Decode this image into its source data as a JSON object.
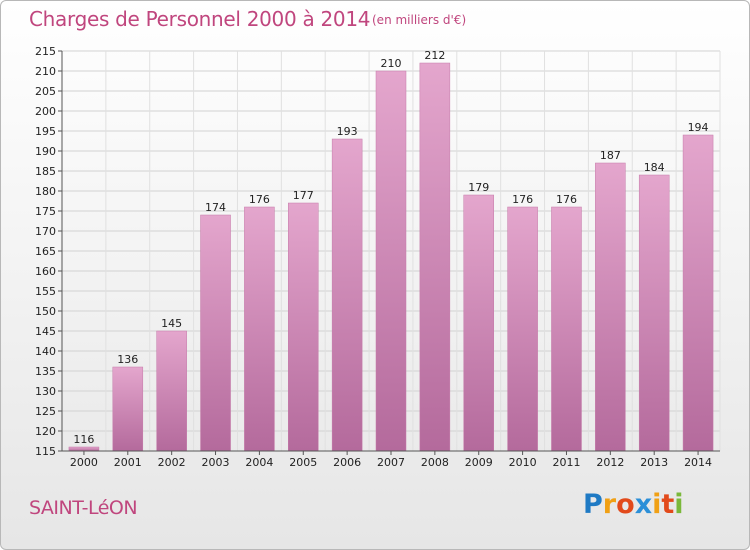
{
  "header": {
    "title": "Charges de Personnel 2000 à 2014",
    "subtitle": "(en milliers d'€)"
  },
  "footer": {
    "town": "SAINT-LéON",
    "logo": {
      "letters": [
        {
          "char": "P",
          "color": "#1f7ac4"
        },
        {
          "char": "r",
          "color": "#f0a015"
        },
        {
          "char": "o",
          "color": "#e24a1b"
        },
        {
          "char": "x",
          "color": "#2b8fd8"
        },
        {
          "char": "i",
          "color": "#f0a015"
        },
        {
          "char": "t",
          "color": "#e24a1b"
        },
        {
          "char": "i",
          "color": "#7ab83a"
        }
      ]
    }
  },
  "chart_data": {
    "type": "bar",
    "categories": [
      "2000",
      "2001",
      "2002",
      "2003",
      "2004",
      "2005",
      "2006",
      "2007",
      "2008",
      "2009",
      "2010",
      "2011",
      "2012",
      "2013",
      "2014"
    ],
    "values": [
      116,
      136,
      145,
      174,
      176,
      177,
      193,
      210,
      212,
      179,
      176,
      176,
      187,
      184,
      194
    ],
    "title": "Charges de Personnel 2000 à 2014",
    "subtitle": "(en milliers d'€)",
    "xlabel": "",
    "ylabel": "",
    "ylim": [
      115,
      215
    ],
    "yticks": [
      115,
      120,
      125,
      130,
      135,
      140,
      145,
      150,
      155,
      160,
      165,
      170,
      175,
      180,
      185,
      190,
      195,
      200,
      205,
      210,
      215
    ],
    "grid": true,
    "data_labels": true,
    "bar_color": "#d68ab8"
  }
}
